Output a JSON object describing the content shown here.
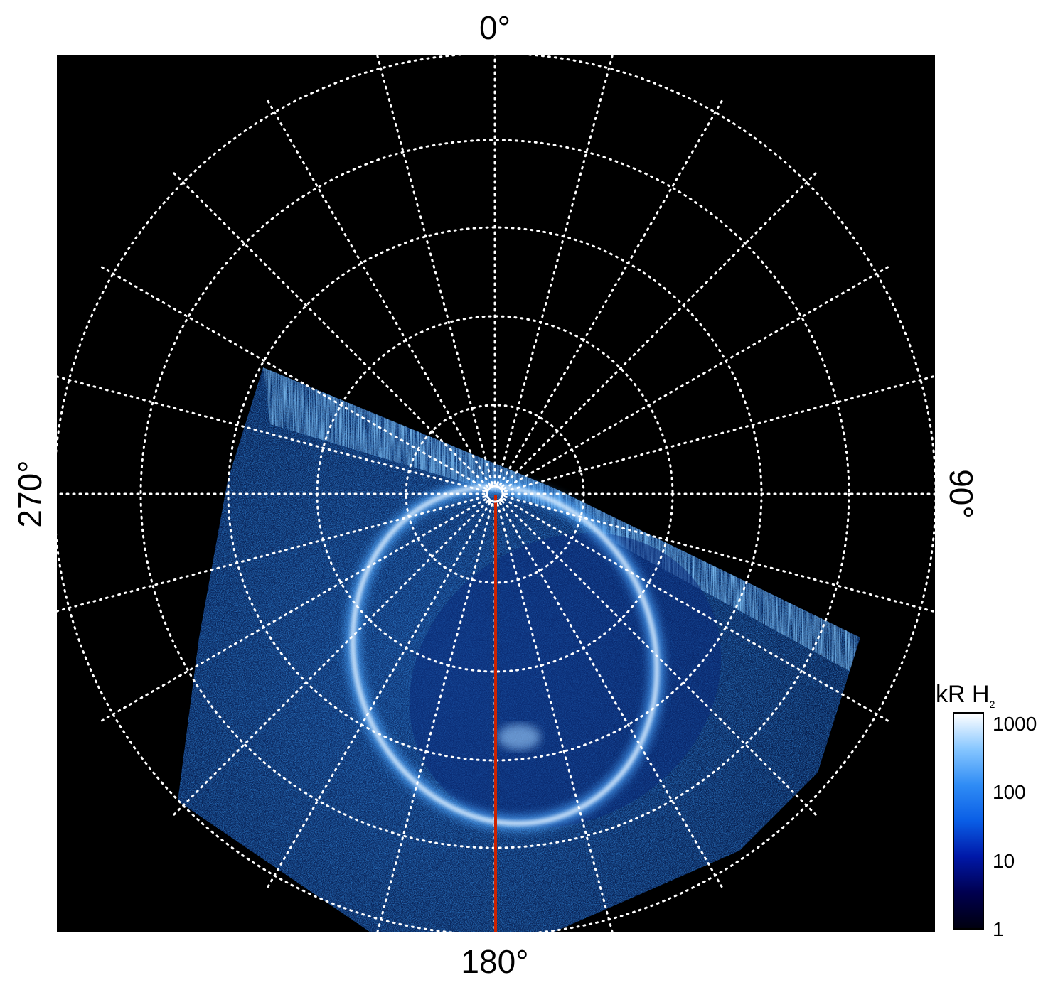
{
  "labels": {
    "top": "0°",
    "bottom": "180°",
    "left": "270°",
    "right": "90°"
  },
  "colorbar": {
    "title_main": "kR H",
    "title_sub": "2",
    "ticks": [
      {
        "value": 1000,
        "text": "1000"
      },
      {
        "value": 100,
        "text": "100"
      },
      {
        "value": 10,
        "text": "10"
      },
      {
        "value": 1,
        "text": "1"
      }
    ],
    "scale": "log",
    "range": [
      1,
      1500
    ],
    "colors": [
      "#000010",
      "#000050",
      "#0018a8",
      "#0a5ee6",
      "#2f8cf5",
      "#86c6ff",
      "#ffffff"
    ]
  },
  "image": {
    "background": "#000000",
    "grid_color": "#ffffff",
    "grid_style": "dotted",
    "meridian_color": "#cc2200",
    "emission_color": "#2f8cf5"
  }
}
